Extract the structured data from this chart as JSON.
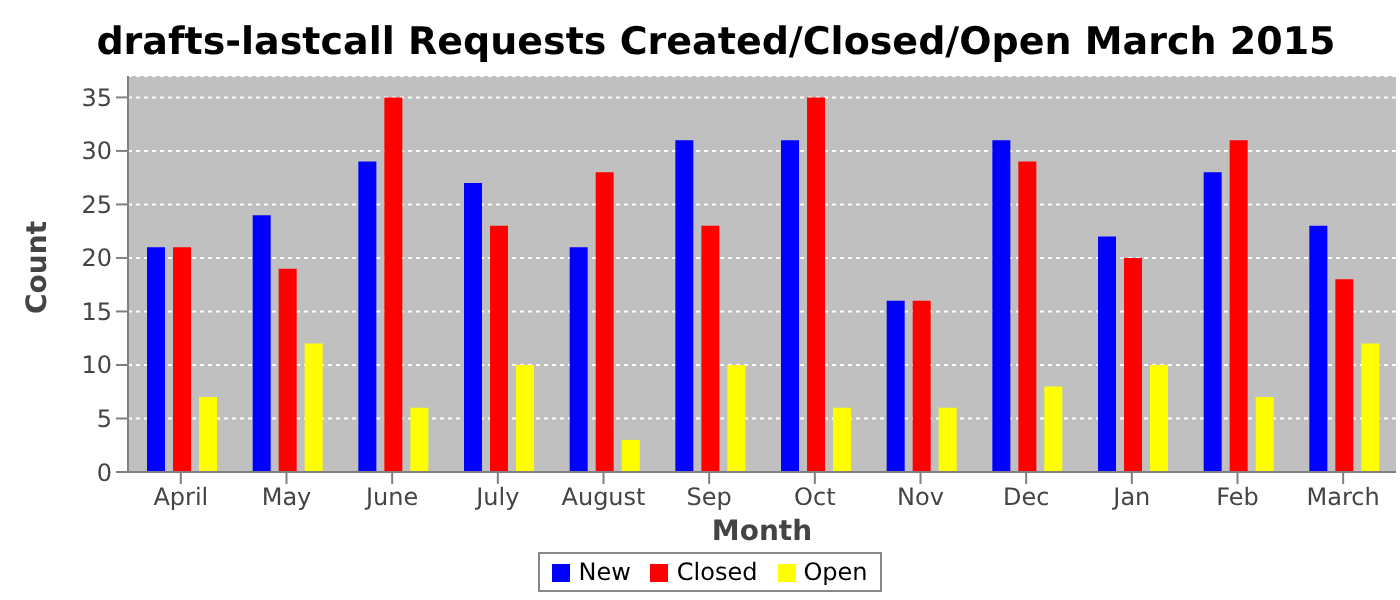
{
  "chart_data": {
    "type": "bar",
    "title": "drafts-lastcall Requests Created/Closed/Open March 2015",
    "xlabel": "Month",
    "ylabel": "Count",
    "categories": [
      "April",
      "May",
      "June",
      "July",
      "August",
      "Sep",
      "Oct",
      "Nov",
      "Dec",
      "Jan",
      "Feb",
      "March"
    ],
    "series": [
      {
        "name": "New",
        "color": "#0000ff",
        "values": [
          21,
          24,
          29,
          27,
          21,
          31,
          31,
          16,
          31,
          22,
          28,
          23
        ]
      },
      {
        "name": "Closed",
        "color": "#ff0000",
        "values": [
          21,
          19,
          35,
          23,
          28,
          23,
          35,
          16,
          29,
          20,
          31,
          18
        ]
      },
      {
        "name": "Open",
        "color": "#ffff00",
        "values": [
          7,
          12,
          6,
          10,
          3,
          10,
          6,
          6,
          8,
          10,
          7,
          12
        ]
      }
    ],
    "ylim": [
      0,
      37
    ],
    "yticks": [
      0,
      5,
      10,
      15,
      20,
      25,
      30,
      35
    ],
    "grid": "y",
    "legend": "bottom"
  }
}
